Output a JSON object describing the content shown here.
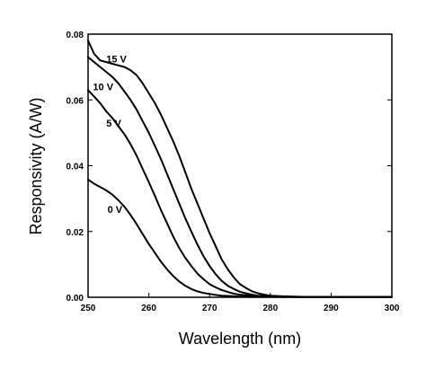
{
  "chart_data": {
    "type": "line",
    "title": "",
    "xlabel": "Wavelength (nm)",
    "ylabel": "Responsivity (A/W)",
    "xlim": [
      250,
      300
    ],
    "ylim": [
      0,
      0.08
    ],
    "x_ticks": [
      250,
      260,
      270,
      280,
      290,
      300
    ],
    "y_ticks": [
      0.0,
      0.02,
      0.04,
      0.06,
      0.08
    ],
    "x_tick_labels": [
      "250",
      "260",
      "270",
      "280",
      "290",
      "300"
    ],
    "y_tick_labels": [
      "0.00",
      "0.02",
      "0.04",
      "0.06",
      "0.08"
    ],
    "grid": false,
    "series": [
      {
        "name": "15 V",
        "label_at": [
          253,
          0.0725
        ],
        "x": [
          250,
          251,
          252,
          253,
          254,
          255,
          256,
          257,
          258,
          259,
          260,
          261,
          262,
          263,
          264,
          265,
          266,
          267,
          268,
          269,
          270,
          271,
          272,
          273,
          274,
          275,
          276,
          277,
          278,
          279,
          280,
          282,
          284,
          286,
          290,
          295,
          300
        ],
        "y": [
          0.078,
          0.074,
          0.072,
          0.0715,
          0.071,
          0.0705,
          0.07,
          0.069,
          0.0675,
          0.065,
          0.062,
          0.059,
          0.0555,
          0.0515,
          0.0475,
          0.043,
          0.038,
          0.033,
          0.0285,
          0.024,
          0.0195,
          0.0155,
          0.0115,
          0.0085,
          0.006,
          0.004,
          0.0028,
          0.0018,
          0.0012,
          0.0008,
          0.0005,
          0.0003,
          0.0002,
          0.0001,
          0.0001,
          0.0001,
          0.0001
        ]
      },
      {
        "name": "10 V",
        "label_at": [
          250.8,
          0.064
        ],
        "x": [
          250,
          251,
          252,
          253,
          254,
          255,
          256,
          257,
          258,
          259,
          260,
          261,
          262,
          263,
          264,
          265,
          266,
          267,
          268,
          269,
          270,
          271,
          272,
          273,
          274,
          275,
          276,
          277,
          278,
          279,
          280,
          282,
          284,
          286,
          290,
          295,
          300
        ],
        "y": [
          0.073,
          0.0715,
          0.07,
          0.0685,
          0.067,
          0.065,
          0.0625,
          0.06,
          0.057,
          0.0535,
          0.05,
          0.046,
          0.042,
          0.0375,
          0.033,
          0.0285,
          0.024,
          0.02,
          0.016,
          0.0125,
          0.0095,
          0.007,
          0.005,
          0.0035,
          0.0025,
          0.0017,
          0.0012,
          0.0008,
          0.0005,
          0.0004,
          0.0003,
          0.0002,
          0.0001,
          0.0001,
          0.0001,
          0.0001,
          0.0001
        ]
      },
      {
        "name": "5 V",
        "label_at": [
          253,
          0.053
        ],
        "x": [
          250,
          251,
          252,
          253,
          254,
          255,
          256,
          257,
          258,
          259,
          260,
          261,
          262,
          263,
          264,
          265,
          266,
          267,
          268,
          269,
          270,
          271,
          272,
          273,
          274,
          275,
          276,
          277,
          278,
          279,
          280,
          282,
          284,
          286,
          290,
          295,
          300
        ],
        "y": [
          0.063,
          0.061,
          0.059,
          0.0565,
          0.0545,
          0.052,
          0.0495,
          0.0465,
          0.043,
          0.039,
          0.035,
          0.0308,
          0.0265,
          0.0225,
          0.0185,
          0.015,
          0.012,
          0.0095,
          0.0072,
          0.0055,
          0.004,
          0.003,
          0.0022,
          0.0016,
          0.0011,
          0.0008,
          0.0006,
          0.0004,
          0.0003,
          0.0002,
          0.0002,
          0.0001,
          0.0001,
          0.0001,
          0.0001,
          0.0001,
          0.0001
        ]
      },
      {
        "name": "0 V",
        "label_at": [
          253.2,
          0.0267
        ],
        "x": [
          250,
          251,
          252,
          253,
          254,
          255,
          256,
          257,
          258,
          259,
          260,
          261,
          262,
          263,
          264,
          265,
          266,
          267,
          268,
          269,
          270,
          271,
          272,
          273,
          274,
          275,
          276,
          277,
          278,
          279,
          280,
          282,
          284,
          286,
          290,
          295,
          300
        ],
        "y": [
          0.0358,
          0.0345,
          0.0335,
          0.0325,
          0.0312,
          0.0295,
          0.0275,
          0.025,
          0.0222,
          0.0192,
          0.0162,
          0.0135,
          0.0108,
          0.0085,
          0.0065,
          0.0048,
          0.0035,
          0.0025,
          0.0018,
          0.0013,
          0.001,
          0.0007,
          0.0005,
          0.0004,
          0.0003,
          0.0002,
          0.0002,
          0.0001,
          0.0001,
          0.0001,
          0.0001,
          0.0001,
          0.0001,
          0.0001,
          0.0001,
          0.0001,
          0.0001
        ]
      }
    ]
  }
}
